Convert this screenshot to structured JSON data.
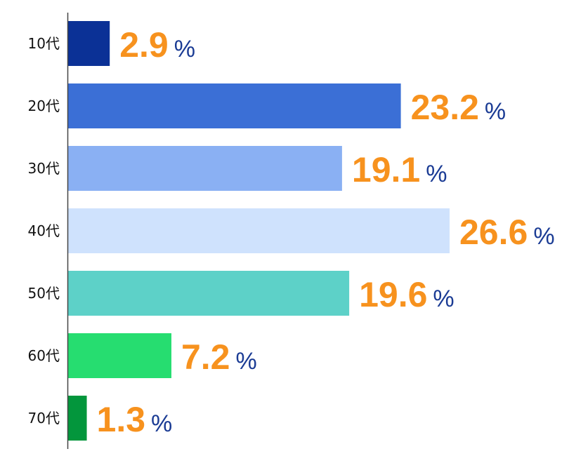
{
  "chart_data": {
    "type": "bar",
    "orientation": "horizontal",
    "categories": [
      "10代",
      "20代",
      "30代",
      "40代",
      "50代",
      "60代",
      "70代"
    ],
    "values": [
      2.9,
      23.2,
      19.1,
      26.6,
      19.6,
      7.2,
      1.3
    ],
    "value_labels": [
      "2.9",
      "23.2",
      "19.1",
      "26.6",
      "19.6",
      "7.2",
      "1.3"
    ],
    "unit": "%",
    "bar_colors": [
      "#0b3196",
      "#3b6fd6",
      "#8ab0f3",
      "#cfe2fd",
      "#5dd1c8",
      "#26dd70",
      "#03963c"
    ],
    "value_color": "#f7921e",
    "unit_color": "#1a3b94",
    "axis_color": "#444444",
    "title": "",
    "xlabel": "",
    "ylabel": "",
    "xlim": [
      0,
      26.6
    ],
    "grid": false,
    "legend": "none"
  }
}
